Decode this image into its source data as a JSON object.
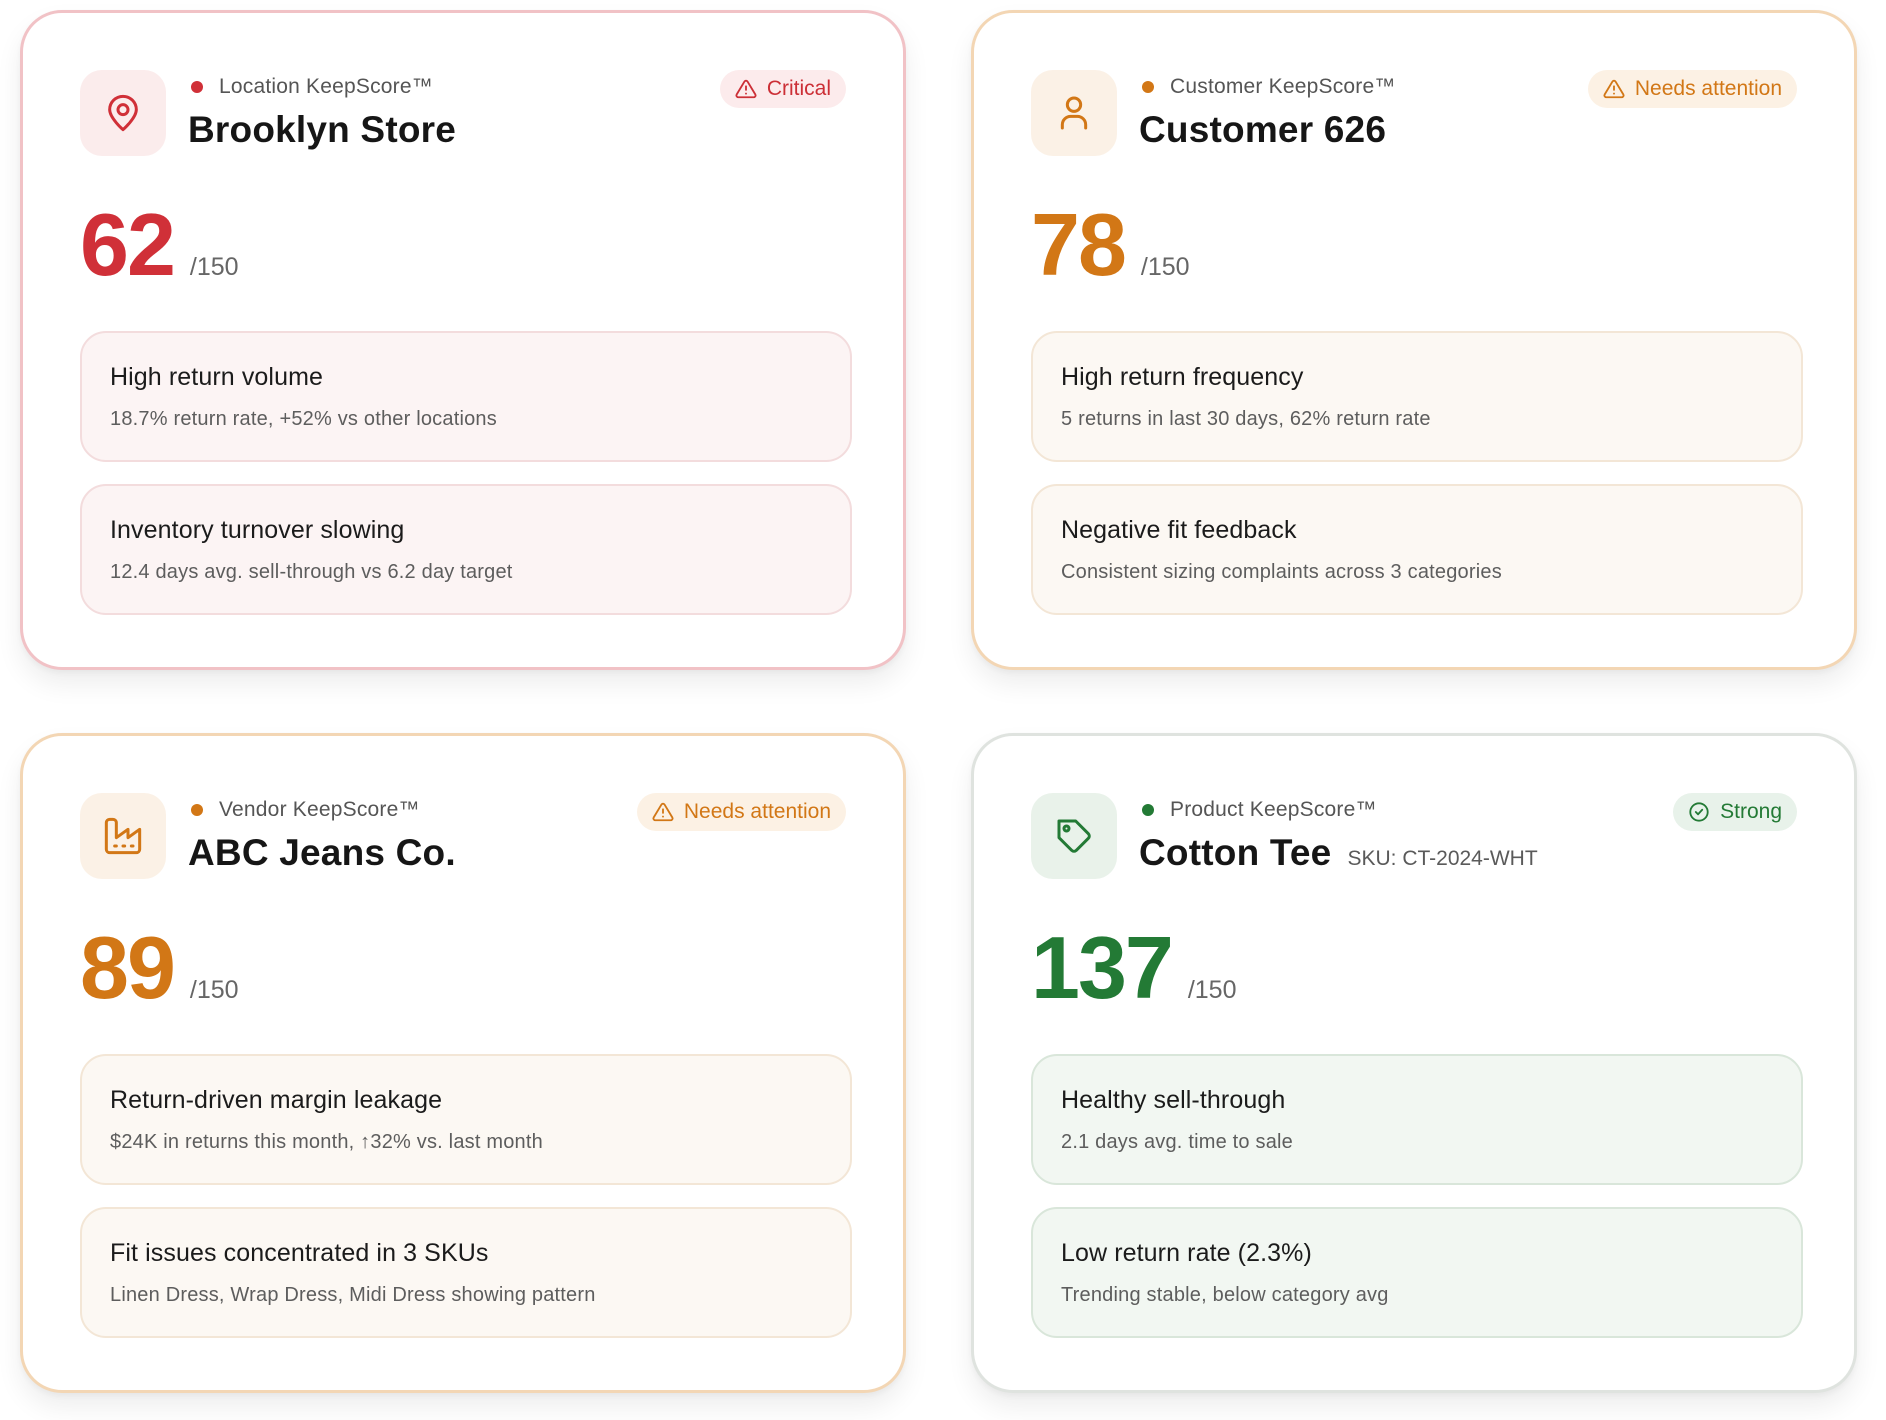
{
  "colors": {
    "critical": "#d03038",
    "warning": "#d27716",
    "strong": "#237a35"
  },
  "cards": [
    {
      "kind": "Location KeepScore™",
      "title": "Brooklyn Store",
      "icon": "map-pin-icon",
      "badge": {
        "label": "Critical",
        "icon": "warning-triangle-icon"
      },
      "score": "62",
      "max": "/150",
      "issues": [
        {
          "title": "High return volume",
          "detail": "18.7% return rate, +52% vs other locations"
        },
        {
          "title": "Inventory turnover slowing",
          "detail": "12.4 days avg. sell-through vs 6.2 day target"
        }
      ]
    },
    {
      "kind": "Customer KeepScore™",
      "title": "Customer 626",
      "icon": "user-icon",
      "badge": {
        "label": "Needs attention",
        "icon": "warning-triangle-icon"
      },
      "score": "78",
      "max": "/150",
      "issues": [
        {
          "title": "High return frequency",
          "detail": "5 returns in last 30 days, 62% return rate"
        },
        {
          "title": "Negative fit feedback",
          "detail": "Consistent sizing complaints across 3 categories"
        }
      ]
    },
    {
      "kind": "Vendor KeepScore™",
      "title": "ABC Jeans Co.",
      "icon": "factory-icon",
      "badge": {
        "label": "Needs attention",
        "icon": "warning-triangle-icon"
      },
      "score": "89",
      "max": "/150",
      "issues": [
        {
          "title": "Return-driven margin leakage",
          "detail": "$24K in returns this month, ↑32% vs. last month"
        },
        {
          "title": "Fit issues concentrated in 3 SKUs",
          "detail": "Linen Dress, Wrap Dress, Midi Dress showing pattern"
        }
      ]
    },
    {
      "kind": "Product KeepScore™",
      "title": "Cotton Tee",
      "sku": "SKU: CT-2024-WHT",
      "icon": "tag-icon",
      "badge": {
        "label": "Strong",
        "icon": "check-circle-icon"
      },
      "score": "137",
      "max": "/150",
      "issues": [
        {
          "title": "Healthy sell-through",
          "detail": "2.1 days avg. time to sale"
        },
        {
          "title": "Low return rate (2.3%)",
          "detail": "Trending stable, below category avg"
        }
      ]
    }
  ]
}
